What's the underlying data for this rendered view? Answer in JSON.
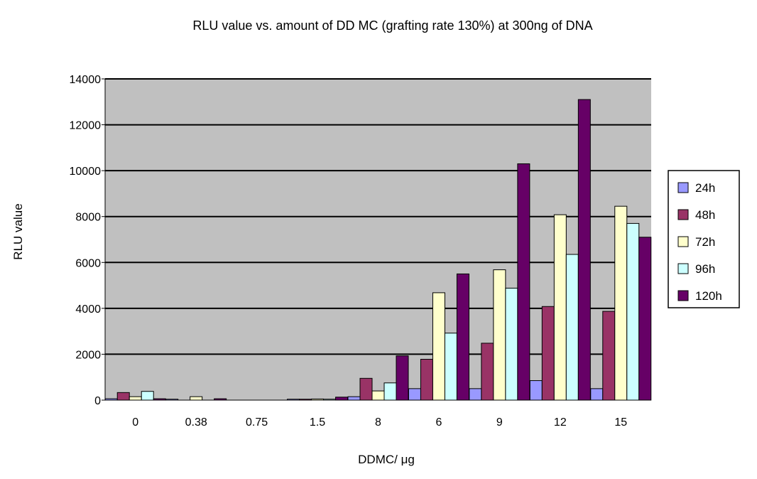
{
  "chart_data": {
    "type": "bar",
    "title": "RLU value vs. amount of DD MC (grafting rate 130%) at 300ng of DNA",
    "xlabel": "DDMC/ μg",
    "ylabel": "RLU value",
    "ylim": [
      0,
      14000
    ],
    "yticks": [
      0,
      2000,
      4000,
      6000,
      8000,
      10000,
      12000,
      14000
    ],
    "grid": true,
    "legend_position": "right",
    "categories": [
      "0",
      "0.38",
      "0.75",
      "1.5",
      "8",
      "6",
      "9",
      "12",
      "15"
    ],
    "series": [
      {
        "name": "24h",
        "color": "#9999FF",
        "values": [
          60,
          40,
          0,
          40,
          150,
          500,
          500,
          850,
          500
        ]
      },
      {
        "name": "48h",
        "color": "#993366",
        "values": [
          330,
          0,
          0,
          40,
          950,
          1780,
          2480,
          4080,
          3870
        ]
      },
      {
        "name": "72h",
        "color": "#FFFFCC",
        "values": [
          150,
          150,
          0,
          50,
          400,
          4680,
          5680,
          8080,
          8450
        ]
      },
      {
        "name": "96h",
        "color": "#CCFFFF",
        "values": [
          380,
          0,
          0,
          40,
          750,
          2920,
          4880,
          6350,
          7700
        ]
      },
      {
        "name": "120h",
        "color": "#660066",
        "values": [
          60,
          60,
          0,
          130,
          1930,
          5500,
          10300,
          13100,
          7100
        ]
      }
    ]
  },
  "colors": {
    "plot_background": "#C0C0C0",
    "gridline": "#000000",
    "bar_outline": "#000000"
  }
}
